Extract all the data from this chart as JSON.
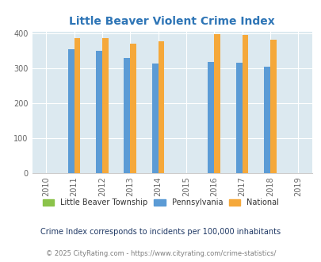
{
  "title": "Little Beaver Violent Crime Index",
  "years": [
    2010,
    2011,
    2012,
    2013,
    2014,
    2015,
    2016,
    2017,
    2018,
    2019
  ],
  "bar_years": [
    2011,
    2012,
    2013,
    2014,
    2016,
    2017,
    2018
  ],
  "pennsylvania": [
    355,
    350,
    329,
    314,
    317,
    315,
    305
  ],
  "national": [
    386,
    387,
    369,
    376,
    397,
    394,
    381
  ],
  "little_beaver": [],
  "color_pa": "#5b9bd5",
  "color_national": "#f5a83a",
  "color_lb": "#8bc34a",
  "color_title": "#2e75b6",
  "color_bg": "#dce9f0",
  "color_subtitle": "#1f3864",
  "color_footer": "#7f7f7f",
  "ylabel_max": 400,
  "ylabel_min": 0,
  "subtitle": "Crime Index corresponds to incidents per 100,000 inhabitants",
  "footer": "© 2025 CityRating.com - https://www.cityrating.com/crime-statistics/",
  "legend_labels": [
    "Little Beaver Township",
    "Pennsylvania",
    "National"
  ]
}
